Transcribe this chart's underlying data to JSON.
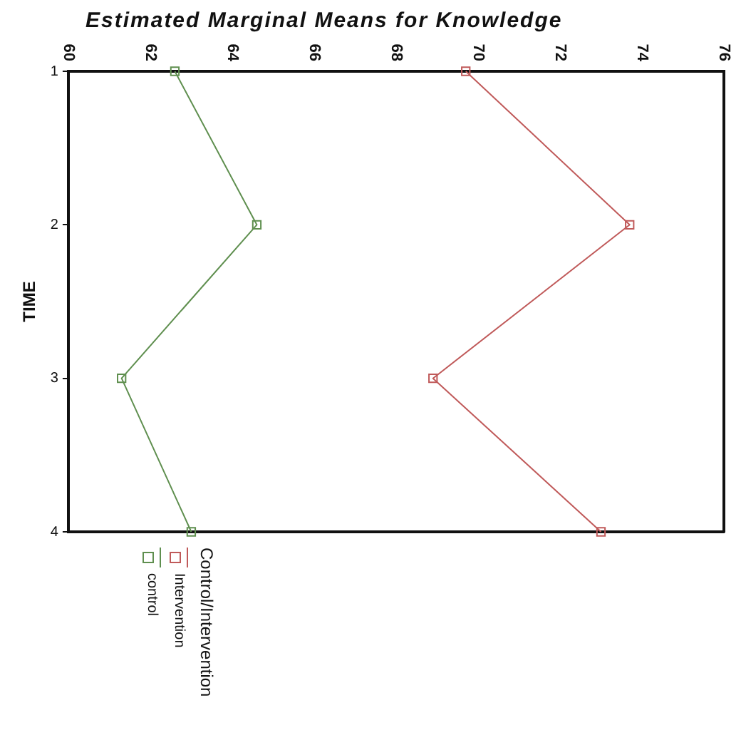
{
  "chart_data": {
    "type": "line",
    "orientation": "horizontal",
    "title": "Estimated Marginal Means for Knowledge",
    "ylabel": "TIME",
    "legend_title": "Control/Intervention",
    "categories": [
      "1",
      "2",
      "3",
      "4"
    ],
    "series": [
      {
        "name": "Intervention",
        "color": "#c05a5a",
        "values": [
          69.7,
          73.7,
          68.9,
          73.0
        ]
      },
      {
        "name": "control",
        "color": "#5f8f4f",
        "values": [
          62.6,
          64.6,
          61.3,
          63.0
        ]
      }
    ],
    "xlim": [
      60,
      76
    ],
    "xticks": [
      60,
      62,
      64,
      66,
      68,
      70,
      72,
      74,
      76
    ],
    "grid": false,
    "legend": "bottom left",
    "marker": "square",
    "line_style": "solid"
  }
}
